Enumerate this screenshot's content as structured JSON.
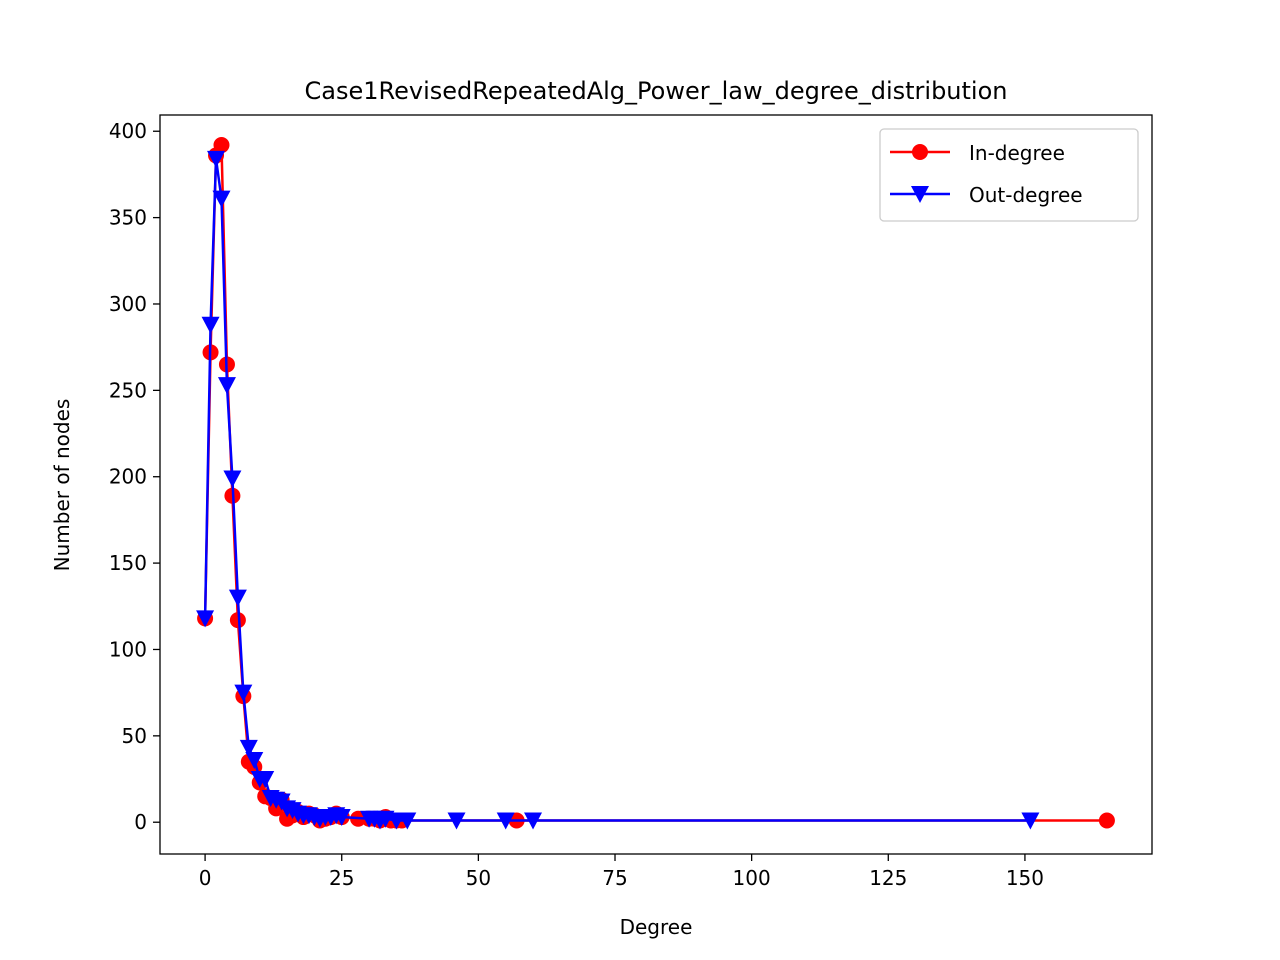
{
  "chart_data": {
    "type": "line",
    "title": "Case1RevisedRepeatedAlg_Power_law_degree_distribution",
    "xlabel": "Degree",
    "ylabel": "Number of nodes",
    "xlim": [
      -8.25,
      173.25
    ],
    "ylim": [
      -18.4,
      409.4
    ],
    "xticks": [
      0,
      25,
      50,
      75,
      100,
      125,
      150
    ],
    "yticks": [
      0,
      50,
      100,
      150,
      200,
      250,
      300,
      350,
      400
    ],
    "grid": false,
    "legend": "top-right",
    "series": [
      {
        "name": "In-degree",
        "color": "#ff0000",
        "marker": "circle",
        "x": [
          0,
          1,
          2,
          3,
          4,
          5,
          6,
          7,
          8,
          9,
          10,
          11,
          12,
          13,
          14,
          15,
          16,
          17,
          18,
          19,
          20,
          21,
          22,
          23,
          24,
          25,
          28,
          30,
          31,
          32,
          33,
          34,
          35,
          36,
          57,
          165
        ],
        "y": [
          118,
          272,
          386,
          392,
          265,
          189,
          117,
          73,
          35,
          32,
          23,
          15,
          14,
          8,
          13,
          2,
          4,
          6,
          3,
          5,
          4,
          1,
          2,
          3,
          5,
          3,
          2,
          2,
          2,
          1,
          3,
          1,
          1,
          1,
          1,
          1
        ]
      },
      {
        "name": "Out-degree",
        "color": "#0000ff",
        "marker": "triangle-down",
        "x": [
          0,
          1,
          2,
          3,
          4,
          5,
          6,
          7,
          8,
          9,
          10,
          11,
          12,
          13,
          14,
          15,
          16,
          17,
          18,
          19,
          20,
          21,
          22,
          23,
          24,
          25,
          30,
          31,
          32,
          33,
          35,
          37,
          46,
          55,
          60,
          151
        ],
        "y": [
          118,
          288,
          384,
          361,
          253,
          199,
          130,
          75,
          43,
          36,
          25,
          25,
          14,
          13,
          12,
          8,
          7,
          5,
          4,
          4,
          3,
          2,
          3,
          3,
          4,
          3,
          2,
          2,
          1,
          2,
          1,
          1,
          1,
          1,
          1,
          1
        ]
      }
    ]
  }
}
